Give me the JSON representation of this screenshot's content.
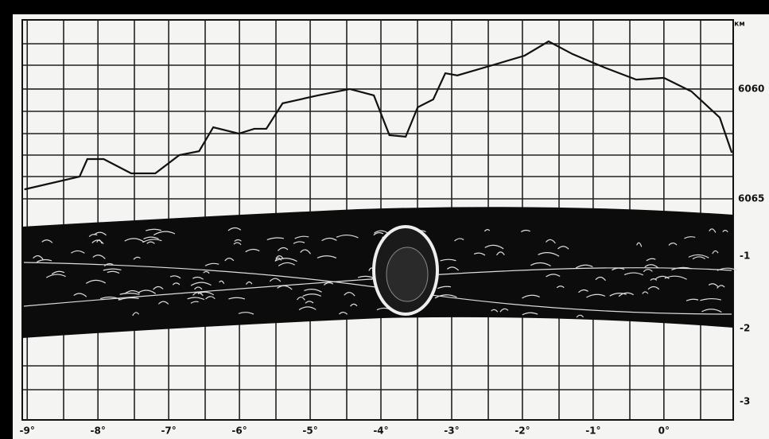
{
  "chart_data": {
    "type": "line",
    "y_unit": "км",
    "x": [
      -9.04,
      -8.26,
      -8.15,
      -7.92,
      -7.53,
      -7.19,
      -6.85,
      -6.57,
      -6.37,
      -6.01,
      -5.79,
      -5.62,
      -5.39,
      -4.89,
      -4.44,
      -4.1,
      -3.88,
      -3.65,
      -3.48,
      -3.26,
      -3.09,
      -2.92,
      -2.42,
      -1.97,
      -1.63,
      -1.29,
      -0.84,
      -0.39,
      0,
      0.39,
      0.79,
      0.96
    ],
    "series": [
      {
        "color": "#111111",
        "values": [
          6064.57,
          6063.99,
          6063.19,
          6063.19,
          6063.84,
          6063.84,
          6063.01,
          6062.83,
          6061.74,
          6062.03,
          6061.81,
          6061.81,
          6060.65,
          6060.29,
          6060.0,
          6060.29,
          6062.1,
          6062.17,
          6060.83,
          6060.47,
          6059.28,
          6059.38,
          6058.91,
          6058.48,
          6057.83,
          6058.41,
          6059.02,
          6059.57,
          6059.49,
          6060.11,
          6061.3,
          6062.9
        ]
      }
    ],
    "xlim": [
      -9.07,
      0.98
    ],
    "xticks": [
      {
        "value": -9,
        "label": "-9°"
      },
      {
        "value": -8,
        "label": "-8°"
      },
      {
        "value": -7,
        "label": "-7°"
      },
      {
        "value": -6,
        "label": "-6°"
      },
      {
        "value": -5,
        "label": "-5°"
      },
      {
        "value": -4,
        "label": "-4°"
      },
      {
        "value": -3,
        "label": "-3°"
      },
      {
        "value": -2,
        "label": "-2°"
      },
      {
        "value": -1,
        "label": "-1°"
      },
      {
        "value": 0,
        "label": "0°"
      }
    ],
    "ylim": [
      6075.07,
      6056.85
    ],
    "yticks": [
      6060,
      6065
    ],
    "strip_labels": [
      "-1",
      "-2",
      "-3"
    ],
    "grid": true
  }
}
